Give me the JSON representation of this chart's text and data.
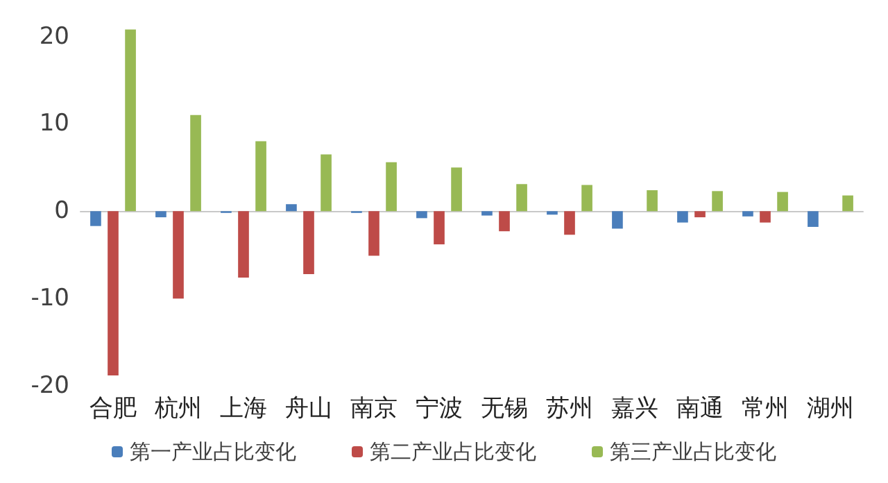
{
  "chart_data": {
    "type": "bar",
    "categories": [
      "合肥",
      "杭州",
      "上海",
      "舟山",
      "南京",
      "宁波",
      "无锡",
      "苏州",
      "嘉兴",
      "南通",
      "常州",
      "湖州"
    ],
    "series": [
      {
        "name": "第一产业占比变化",
        "color": "#4a7ebb",
        "values": [
          -1.7,
          -0.7,
          -0.2,
          0.8,
          -0.2,
          -0.8,
          -0.5,
          -0.4,
          -2.0,
          -1.3,
          -0.6,
          -1.8
        ]
      },
      {
        "name": "第二产业占比变化",
        "color": "#be4b48",
        "values": [
          -18.8,
          -10.0,
          -7.6,
          -7.2,
          -5.1,
          -3.8,
          -2.3,
          -2.7,
          0,
          -0.7,
          -1.3,
          0
        ]
      },
      {
        "name": "第三产业占比变化",
        "color": "#98b954",
        "values": [
          20.8,
          11.0,
          8.0,
          6.5,
          5.6,
          5.0,
          3.1,
          3.0,
          2.4,
          2.3,
          2.2,
          1.8
        ]
      }
    ],
    "ylim": [
      -20,
      21
    ],
    "yticks": [
      -20,
      -10,
      0,
      10,
      20
    ],
    "legend": "bottom"
  }
}
